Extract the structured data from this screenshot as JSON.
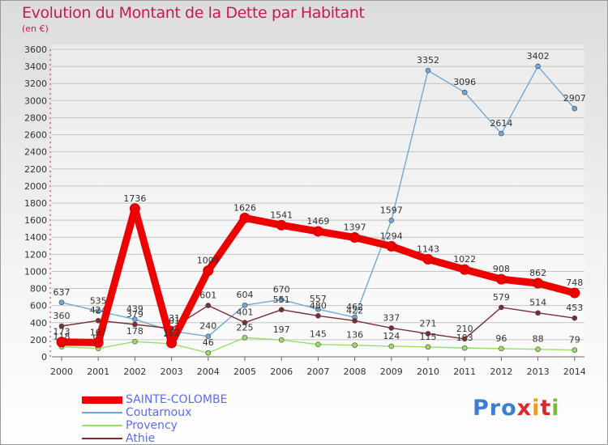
{
  "title": "Evolution du Montant de la Dette par Habitant",
  "subtitle": "(en €)",
  "logo": [
    "Pro",
    "x",
    "i",
    "t",
    "i"
  ],
  "chart_data": {
    "type": "line",
    "x": [
      "2000",
      "2001",
      "2002",
      "2003",
      "2004",
      "2005",
      "2006",
      "2007",
      "2008",
      "2009",
      "2010",
      "2011",
      "2012",
      "2013",
      "2014"
    ],
    "ylim": [
      0,
      3600
    ],
    "yticks": [
      0,
      200,
      400,
      600,
      800,
      1000,
      1200,
      1400,
      1600,
      1800,
      2000,
      2200,
      2400,
      2600,
      2800,
      3000,
      3200,
      3400,
      3600
    ],
    "grid": true,
    "legend_position": "bottom-left",
    "series": [
      {
        "name": "Coutarnoux",
        "color": "#6fa8d8",
        "values": [
          637,
          535,
          439,
          301,
          240,
          604,
          670,
          557,
          462,
          1597,
          3352,
          3096,
          2614,
          3402,
          2907
        ]
      },
      {
        "name": "Provency",
        "color": "#99dd66",
        "values": [
          118,
          98,
          178,
          152,
          46,
          225,
          197,
          145,
          136,
          124,
          115,
          103,
          96,
          88,
          79
        ]
      },
      {
        "name": "Athie",
        "color": "#7a2e34",
        "values": [
          360,
          424,
          379,
          331,
          601,
          401,
          551,
          480,
          422,
          337,
          271,
          210,
          579,
          514,
          453
        ]
      },
      {
        "name": "SAINTE-COLOMBE",
        "color": "#ee0000",
        "values": [
          173,
          167,
          1736,
          162,
          1009,
          1626,
          1541,
          1469,
          1397,
          1294,
          1143,
          1022,
          908,
          862,
          748
        ]
      }
    ],
    "legend_order": [
      "SAINTE-COLOMBE",
      "Coutarnoux",
      "Provency",
      "Athie"
    ]
  }
}
